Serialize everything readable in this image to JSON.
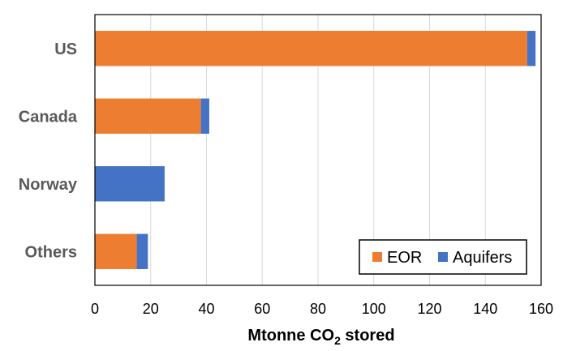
{
  "chart_data": {
    "type": "bar",
    "orientation": "horizontal",
    "stacked": true,
    "categories": [
      "US",
      "Canada",
      "Norway",
      "Others"
    ],
    "series": [
      {
        "name": "EOR",
        "values": [
          155,
          38,
          0,
          15
        ],
        "color": "#ED7D31"
      },
      {
        "name": "Aquifers",
        "values": [
          3,
          3,
          25,
          4
        ],
        "color": "#4472C4"
      }
    ],
    "xlabel_main": "Mtonne CO",
    "xlabel_sub": "2",
    "xlabel_tail": " stored",
    "xlim": [
      0,
      160
    ],
    "xticks": [
      "0",
      "20",
      "40",
      "60",
      "80",
      "100",
      "120",
      "140",
      "160"
    ],
    "grid": "vertical",
    "legend_position": "bottom-right"
  }
}
